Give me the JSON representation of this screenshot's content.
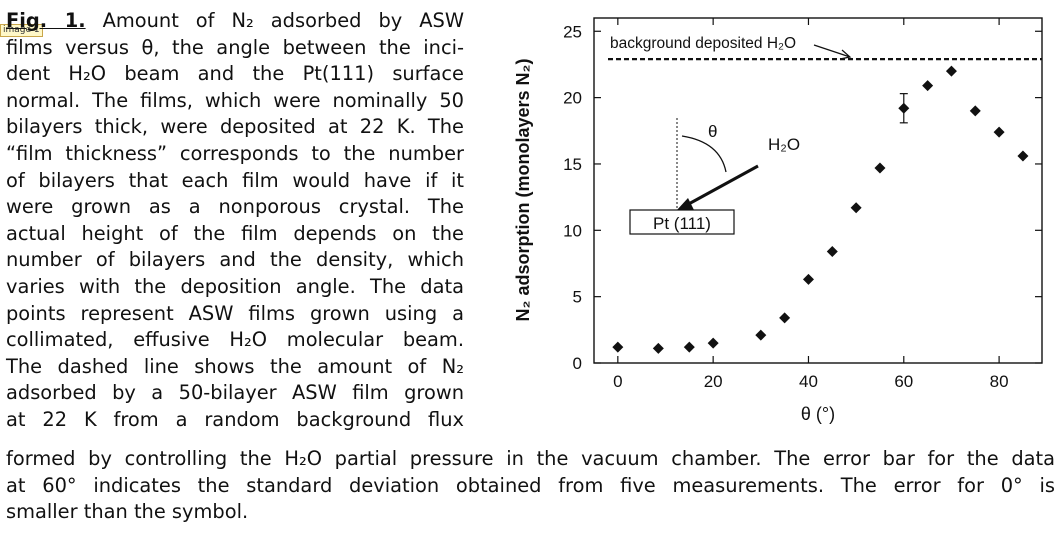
{
  "page_tag": "image 1",
  "caption": {
    "fig_label": "Fig. 1.",
    "lines": [
      " Amount of N₂ adsorbed by ASW",
      "films versus θ, the angle between the inci-",
      "dent H₂O beam and the Pt(111) surface",
      "normal. The films, which were nominally 50",
      "bilayers thick, were deposited at 22 K. The",
      "“film thickness” corresponds to the number",
      "of bilayers that each film would have if it",
      "were grown as a nonporous crystal. The",
      "actual height of the film depends on the",
      "number of bilayers and the density, which",
      "varies with the deposition angle. The data",
      "points represent ASW films grown using a",
      "collimated, effusive H₂O molecular beam.",
      "The dashed line shows the amount of N₂",
      "adsorbed by a 50-bilayer ASW film grown",
      "at 22 K from a random background flux"
    ],
    "bottom_lines": [
      "formed by controlling the H₂O partial pressure in the vacuum chamber. The error bar for the data",
      "at 60° indicates the standard deviation obtained from five measurements. The error for 0° is",
      "smaller than the symbol."
    ]
  },
  "chart_data": {
    "type": "scatter",
    "xlabel": "θ (°)",
    "ylabel": "N₂ adsorption (monolayers N₂)",
    "xlim": [
      -5,
      89
    ],
    "ylim": [
      0,
      26
    ],
    "xticks": [
      0,
      20,
      40,
      60,
      80
    ],
    "yticks": [
      0,
      5,
      10,
      15,
      20,
      25
    ],
    "points": [
      {
        "x": 0,
        "y": 1.2
      },
      {
        "x": 8.5,
        "y": 1.1
      },
      {
        "x": 15,
        "y": 1.2
      },
      {
        "x": 20,
        "y": 1.5
      },
      {
        "x": 30,
        "y": 2.1
      },
      {
        "x": 35,
        "y": 3.4
      },
      {
        "x": 40,
        "y": 6.3
      },
      {
        "x": 45,
        "y": 8.4
      },
      {
        "x": 50,
        "y": 11.7
      },
      {
        "x": 55,
        "y": 14.7
      },
      {
        "x": 60,
        "y": 19.2
      },
      {
        "x": 65,
        "y": 20.9
      },
      {
        "x": 70,
        "y": 22.0
      },
      {
        "x": 75,
        "y": 19.0
      },
      {
        "x": 80,
        "y": 17.4
      },
      {
        "x": 85,
        "y": 15.6
      }
    ],
    "error_bar": {
      "x": 60,
      "low": 18.1,
      "high": 20.3
    },
    "reference_line": {
      "y": 22.9,
      "label": "background deposited H₂O"
    },
    "inset": {
      "surface_label": "Pt (111)",
      "beam_label": "H₂O",
      "angle_label": "θ"
    }
  }
}
